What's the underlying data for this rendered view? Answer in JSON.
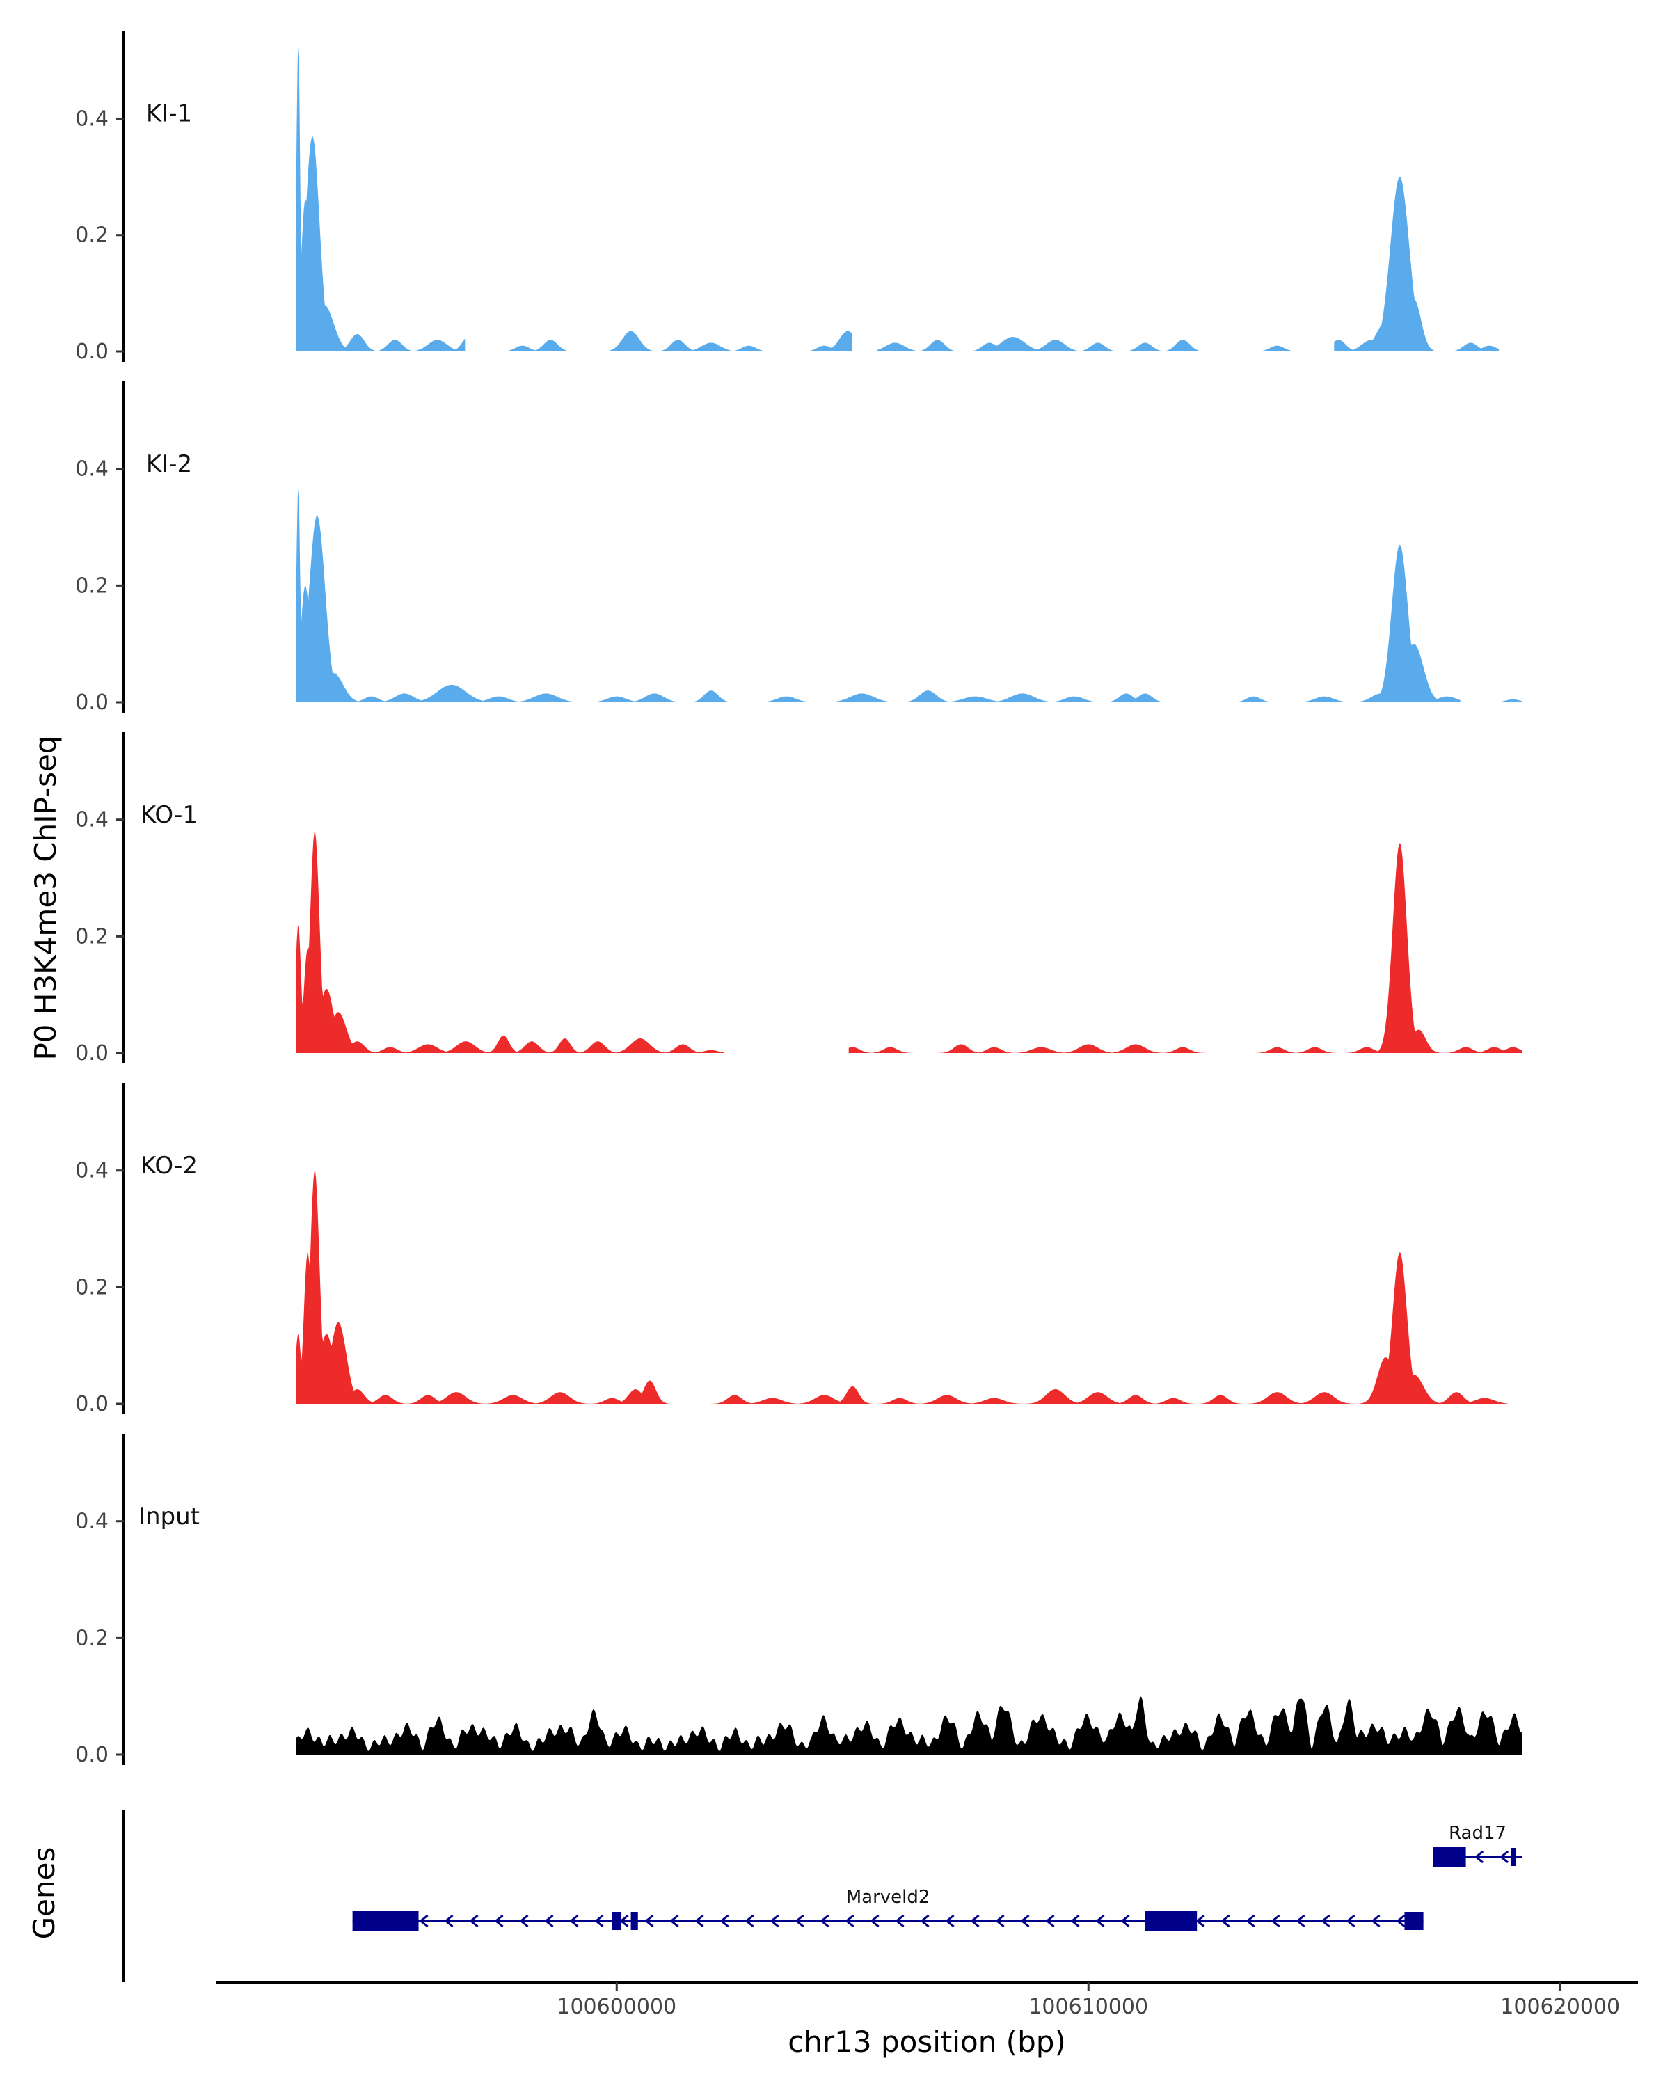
{
  "chart_data": {
    "type": "area",
    "ylabel": "P0 H3K4me3 ChIP-seq",
    "xlabel": "chr13 position (bp)",
    "ylim": [
      0,
      0.55
    ],
    "yticks": [
      0.0,
      0.2,
      0.4
    ],
    "ytick_labels": [
      "0.0",
      "0.2",
      "0.4"
    ],
    "xlim": [
      100591500,
      100621000
    ],
    "xticks": [
      100600000,
      100610000,
      100620000
    ],
    "xtick_labels": [
      "100600000",
      "100610000",
      "100620000"
    ],
    "data_range": [
      100593200,
      100619200
    ],
    "colors": {
      "KI": "#5aabec",
      "KO": "#ee2b2b",
      "Input": "#000000",
      "gene": "#00008b"
    },
    "tracks": [
      {
        "name": "KI-1",
        "color": "#5aabec",
        "peaks": [
          [
            100593250,
            0.53,
            40
          ],
          [
            100593400,
            0.26,
            90
          ],
          [
            100593550,
            0.37,
            150
          ],
          [
            100593800,
            0.08,
            200
          ],
          [
            100594500,
            0.03,
            150
          ],
          [
            100595300,
            0.02,
            150
          ],
          [
            100596200,
            0.02,
            200
          ],
          [
            100596900,
            0.03,
            150
          ],
          [
            100598000,
            0.01,
            150
          ],
          [
            100598600,
            0.02,
            150
          ],
          [
            100600300,
            0.035,
            180
          ],
          [
            100601300,
            0.02,
            150
          ],
          [
            100602000,
            0.015,
            200
          ],
          [
            100602800,
            0.01,
            150
          ],
          [
            100604400,
            0.01,
            150
          ],
          [
            100604900,
            0.035,
            180
          ],
          [
            100605900,
            0.015,
            200
          ],
          [
            100606800,
            0.02,
            150
          ],
          [
            100607900,
            0.015,
            150
          ],
          [
            100608400,
            0.025,
            250
          ],
          [
            100609300,
            0.02,
            200
          ],
          [
            100610200,
            0.015,
            150
          ],
          [
            100611200,
            0.015,
            150
          ],
          [
            100612000,
            0.02,
            150
          ],
          [
            100614000,
            0.01,
            150
          ],
          [
            100615300,
            0.02,
            150
          ],
          [
            100616000,
            0.02,
            200
          ],
          [
            100616300,
            0.05,
            200
          ],
          [
            100616600,
            0.3,
            200
          ],
          [
            100616900,
            0.09,
            150
          ],
          [
            100618100,
            0.015,
            150
          ],
          [
            100618500,
            0.01,
            150
          ]
        ],
        "gaps": [
          [
            100596800,
            100597400
          ],
          [
            100605000,
            100605500
          ],
          [
            100612800,
            100613500
          ],
          [
            100614800,
            100615200
          ],
          [
            100618700,
            100619200
          ]
        ]
      },
      {
        "name": "KI-2",
        "color": "#5aabec",
        "peaks": [
          [
            100593250,
            0.37,
            40
          ],
          [
            100593400,
            0.2,
            100
          ],
          [
            100593650,
            0.32,
            170
          ],
          [
            100594000,
            0.05,
            200
          ],
          [
            100594800,
            0.01,
            150
          ],
          [
            100595500,
            0.015,
            200
          ],
          [
            100596500,
            0.03,
            300
          ],
          [
            100597500,
            0.01,
            200
          ],
          [
            100598500,
            0.015,
            250
          ],
          [
            100600000,
            0.01,
            200
          ],
          [
            100600800,
            0.015,
            200
          ],
          [
            100602000,
            0.02,
            150
          ],
          [
            100603600,
            0.01,
            200
          ],
          [
            100605200,
            0.015,
            250
          ],
          [
            100606600,
            0.02,
            180
          ],
          [
            100607600,
            0.01,
            250
          ],
          [
            100608600,
            0.015,
            250
          ],
          [
            100609700,
            0.01,
            200
          ],
          [
            100610800,
            0.015,
            150
          ],
          [
            100611200,
            0.015,
            150
          ],
          [
            100613500,
            0.01,
            150
          ],
          [
            100615000,
            0.01,
            200
          ],
          [
            100616200,
            0.015,
            200
          ],
          [
            100616600,
            0.27,
            170
          ],
          [
            100616900,
            0.1,
            200
          ],
          [
            100617600,
            0.01,
            200
          ],
          [
            100619000,
            0.005,
            150
          ]
        ],
        "gaps": [
          [
            100611600,
            100613100
          ],
          [
            100617900,
            100618700
          ]
        ]
      },
      {
        "name": "KO-1",
        "color": "#ee2b2b",
        "peaks": [
          [
            100593250,
            0.22,
            60
          ],
          [
            100593450,
            0.18,
            80
          ],
          [
            100593600,
            0.38,
            100
          ],
          [
            100593850,
            0.11,
            150
          ],
          [
            100594100,
            0.07,
            170
          ],
          [
            100594500,
            0.02,
            150
          ],
          [
            100595200,
            0.01,
            150
          ],
          [
            100596000,
            0.015,
            200
          ],
          [
            100596800,
            0.02,
            200
          ],
          [
            100597600,
            0.03,
            120
          ],
          [
            100598200,
            0.02,
            150
          ],
          [
            100598900,
            0.025,
            120
          ],
          [
            100599600,
            0.02,
            150
          ],
          [
            100600500,
            0.025,
            200
          ],
          [
            100601400,
            0.015,
            150
          ],
          [
            100602000,
            0.005,
            150
          ],
          [
            100605000,
            0.01,
            150
          ],
          [
            100605800,
            0.01,
            150
          ],
          [
            100607300,
            0.015,
            150
          ],
          [
            100608000,
            0.01,
            150
          ],
          [
            100609000,
            0.01,
            200
          ],
          [
            100610000,
            0.015,
            200
          ],
          [
            100611000,
            0.015,
            200
          ],
          [
            100612000,
            0.01,
            150
          ],
          [
            100614000,
            0.01,
            150
          ],
          [
            100614800,
            0.01,
            150
          ],
          [
            100615900,
            0.01,
            150
          ],
          [
            100616600,
            0.36,
            150
          ],
          [
            100617000,
            0.04,
            150
          ],
          [
            100618000,
            0.01,
            150
          ],
          [
            100618600,
            0.01,
            150
          ],
          [
            100619000,
            0.01,
            150
          ]
        ],
        "gaps": [
          [
            100602300,
            100604900
          ]
        ]
      },
      {
        "name": "KO-2",
        "color": "#ee2b2b",
        "peaks": [
          [
            100593250,
            0.12,
            60
          ],
          [
            100593450,
            0.26,
            80
          ],
          [
            100593600,
            0.4,
            100
          ],
          [
            100593850,
            0.12,
            150
          ],
          [
            100594100,
            0.14,
            170
          ],
          [
            100594500,
            0.025,
            150
          ],
          [
            100595100,
            0.015,
            150
          ],
          [
            100596000,
            0.015,
            150
          ],
          [
            100596600,
            0.02,
            200
          ],
          [
            100597800,
            0.015,
            200
          ],
          [
            100598800,
            0.02,
            200
          ],
          [
            100599900,
            0.01,
            150
          ],
          [
            100600400,
            0.025,
            150
          ],
          [
            100600700,
            0.04,
            130
          ],
          [
            100602500,
            0.015,
            150
          ],
          [
            100603300,
            0.01,
            200
          ],
          [
            100604400,
            0.015,
            200
          ],
          [
            100605000,
            0.03,
            130
          ],
          [
            100606000,
            0.01,
            150
          ],
          [
            100607000,
            0.015,
            200
          ],
          [
            100608000,
            0.01,
            200
          ],
          [
            100609300,
            0.025,
            200
          ],
          [
            100610200,
            0.02,
            200
          ],
          [
            100611000,
            0.015,
            150
          ],
          [
            100611800,
            0.01,
            150
          ],
          [
            100612800,
            0.015,
            150
          ],
          [
            100614000,
            0.02,
            200
          ],
          [
            100615000,
            0.02,
            200
          ],
          [
            100616300,
            0.08,
            170
          ],
          [
            100616600,
            0.26,
            150
          ],
          [
            100616900,
            0.05,
            200
          ],
          [
            100617800,
            0.02,
            150
          ],
          [
            100618400,
            0.01,
            200
          ]
        ],
        "gaps": [
          [
            100618900,
            100619200
          ]
        ]
      },
      {
        "name": "Input",
        "color": "#000000",
        "baseline": 0.012,
        "peaks": [
          [
            100593500,
            0.03,
            200
          ],
          [
            100594300,
            0.03,
            250
          ],
          [
            100595500,
            0.035,
            250
          ],
          [
            100596200,
            0.045,
            200
          ],
          [
            100597000,
            0.04,
            250
          ],
          [
            100597800,
            0.035,
            200
          ],
          [
            100598800,
            0.04,
            250
          ],
          [
            100599500,
            0.06,
            150
          ],
          [
            100600100,
            0.03,
            250
          ],
          [
            100601700,
            0.035,
            200
          ],
          [
            100602500,
            0.025,
            250
          ],
          [
            100603500,
            0.04,
            250
          ],
          [
            100604400,
            0.055,
            150
          ],
          [
            100605200,
            0.04,
            250
          ],
          [
            100606000,
            0.045,
            250
          ],
          [
            100607000,
            0.05,
            200
          ],
          [
            100607700,
            0.055,
            200
          ],
          [
            100608200,
            0.07,
            180
          ],
          [
            100609000,
            0.06,
            200
          ],
          [
            100610000,
            0.05,
            250
          ],
          [
            100610700,
            0.06,
            180
          ],
          [
            100611100,
            0.08,
            120
          ],
          [
            100612000,
            0.04,
            250
          ],
          [
            100612800,
            0.05,
            200
          ],
          [
            100613400,
            0.06,
            200
          ],
          [
            100614100,
            0.07,
            180
          ],
          [
            100614500,
            0.09,
            120
          ],
          [
            100615000,
            0.07,
            150
          ],
          [
            100615500,
            0.08,
            120
          ],
          [
            100616000,
            0.04,
            250
          ],
          [
            100616600,
            0.03,
            250
          ],
          [
            100617200,
            0.065,
            180
          ],
          [
            100617800,
            0.065,
            180
          ],
          [
            100618400,
            0.06,
            200
          ],
          [
            100619000,
            0.05,
            200
          ]
        ]
      }
    ],
    "genes": [
      {
        "name": "Marveld2",
        "strand": "-",
        "start": 100594400,
        "end": 100617100,
        "exons": [
          [
            100594400,
            100595800
          ],
          [
            100599900,
            100600100
          ],
          [
            100600300,
            100600450
          ],
          [
            100611200,
            100612300
          ],
          [
            100616700,
            100617100
          ]
        ]
      },
      {
        "name": "Rad17",
        "strand": "-",
        "start": 100617300,
        "end": 100619200,
        "exons": [
          [
            100617300,
            100618000
          ],
          [
            100618950,
            100619000
          ]
        ]
      }
    ],
    "genes_label": "Genes"
  }
}
